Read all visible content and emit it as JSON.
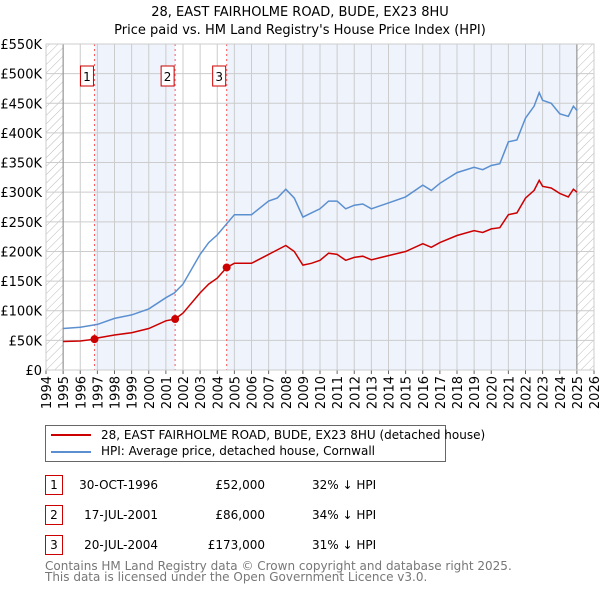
{
  "chart_data": {
    "type": "line",
    "title": "28, EAST FAIRHOLME ROAD, BUDE, EX23 8HU",
    "subtitle": "Price paid vs. HM Land Registry's House Price Index (HPI)",
    "xlim": [
      1994,
      2026
    ],
    "ylim": [
      0,
      550000
    ],
    "x_ticks": [
      "1994",
      "1995",
      "1996",
      "1997",
      "1998",
      "1999",
      "2000",
      "2001",
      "2002",
      "2003",
      "2004",
      "2005",
      "2006",
      "2007",
      "2008",
      "2009",
      "2010",
      "2011",
      "2012",
      "2013",
      "2014",
      "2015",
      "2016",
      "2017",
      "2018",
      "2019",
      "2020",
      "2021",
      "2022",
      "2023",
      "2024",
      "2025",
      "2026"
    ],
    "y_ticks": [
      {
        "v": 0,
        "l": "£0"
      },
      {
        "v": 50000,
        "l": "£50K"
      },
      {
        "v": 100000,
        "l": "£100K"
      },
      {
        "v": 150000,
        "l": "£150K"
      },
      {
        "v": 200000,
        "l": "£200K"
      },
      {
        "v": 250000,
        "l": "£250K"
      },
      {
        "v": 300000,
        "l": "£300K"
      },
      {
        "v": 350000,
        "l": "£350K"
      },
      {
        "v": 400000,
        "l": "£400K"
      },
      {
        "v": 450000,
        "l": "£450K"
      },
      {
        "v": 500000,
        "l": "£500K"
      },
      {
        "v": 550000,
        "l": "£550K"
      }
    ],
    "grid": true,
    "data_range": [
      1995,
      2025
    ],
    "series": [
      {
        "name": "28, EAST FAIRHOLME ROAD, BUDE, EX23 8HU (detached house)",
        "color": "#cc0000",
        "x": [
          1995,
          1996,
          1996.83,
          1997,
          1998,
          1999,
          2000,
          2001,
          2001.54,
          2002,
          2003,
          2003.5,
          2004,
          2004.55,
          2005,
          2006,
          2007,
          2008,
          2008.5,
          2009,
          2009.5,
          2010,
          2010.5,
          2011,
          2011.5,
          2012,
          2012.5,
          2013,
          2014,
          2015,
          2016,
          2016.5,
          2017,
          2018,
          2019,
          2019.5,
          2020,
          2020.5,
          2021,
          2021.5,
          2022,
          2022.5,
          2022.8,
          2023,
          2023.5,
          2024,
          2024.5,
          2024.8,
          2025
        ],
        "y": [
          48000,
          49000,
          52000,
          54000,
          59000,
          63000,
          70000,
          83000,
          86000,
          96000,
          130000,
          145000,
          155000,
          173000,
          180000,
          180000,
          195000,
          210000,
          200000,
          177000,
          180000,
          185000,
          197000,
          195000,
          185000,
          190000,
          192000,
          186000,
          193000,
          200000,
          213000,
          207000,
          215000,
          227000,
          235000,
          232000,
          238000,
          240000,
          262000,
          265000,
          290000,
          303000,
          320000,
          310000,
          307000,
          298000,
          292000,
          305000,
          300000
        ]
      },
      {
        "name": "HPI: Average price, detached house, Cornwall",
        "color": "#5b8fd0",
        "x": [
          1995,
          1996,
          1997,
          1998,
          1999,
          2000,
          2001,
          2001.5,
          2002,
          2003,
          2003.5,
          2004,
          2004.5,
          2005,
          2006,
          2007,
          2007.5,
          2008,
          2008.5,
          2009,
          2009.5,
          2010,
          2010.5,
          2011,
          2011.5,
          2012,
          2012.5,
          2013,
          2014,
          2015,
          2016,
          2016.5,
          2017,
          2018,
          2019,
          2019.5,
          2020,
          2020.5,
          2021,
          2021.5,
          2022,
          2022.5,
          2022.8,
          2023,
          2023.5,
          2024,
          2024.5,
          2024.8,
          2025
        ],
        "y": [
          70000,
          72000,
          77000,
          87000,
          93000,
          103000,
          122000,
          130000,
          145000,
          195000,
          215000,
          228000,
          245000,
          262000,
          262000,
          285000,
          290000,
          305000,
          290000,
          258000,
          265000,
          272000,
          285000,
          285000,
          272000,
          278000,
          280000,
          272000,
          282000,
          292000,
          312000,
          303000,
          315000,
          333000,
          342000,
          338000,
          345000,
          348000,
          385000,
          388000,
          425000,
          445000,
          468000,
          455000,
          450000,
          432000,
          428000,
          445000,
          438000
        ]
      }
    ],
    "sales": [
      {
        "n": "1",
        "x": 1996.83,
        "date": "30-OCT-1996",
        "price": "£52,000",
        "price_v": 52000,
        "hpi": "32% ↓ HPI"
      },
      {
        "n": "2",
        "x": 2001.54,
        "date": "17-JUL-2001",
        "price": "£86,000",
        "price_v": 86000,
        "hpi": "34% ↓ HPI"
      },
      {
        "n": "3",
        "x": 2004.55,
        "date": "20-JUL-2004",
        "price": "£173,000",
        "price_v": 173000,
        "hpi": "31% ↓ HPI"
      }
    ],
    "legend_position": "below"
  },
  "footer": [
    "Contains HM Land Registry data © Crown copyright and database right 2025.",
    "This data is licensed under the Open Government Licence v3.0."
  ]
}
